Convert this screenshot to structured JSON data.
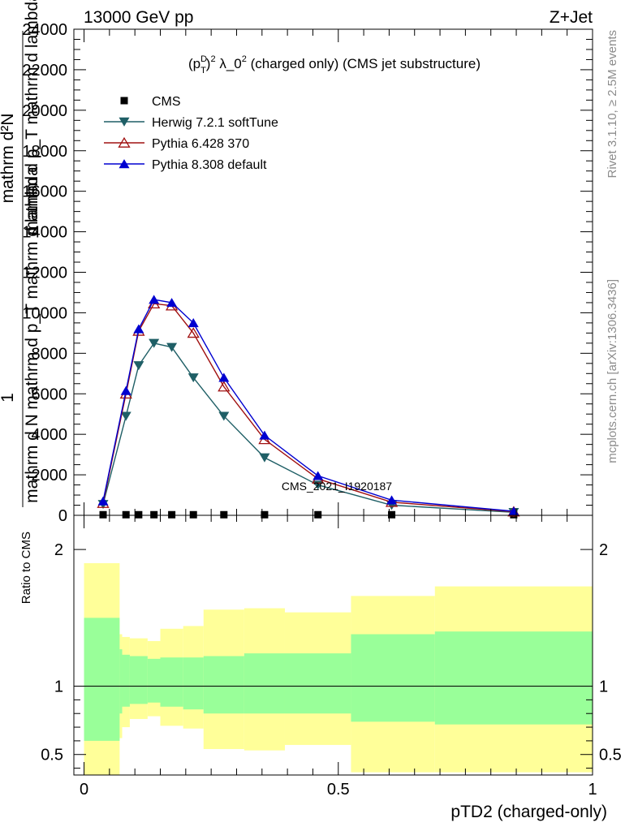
{
  "header": {
    "energy": "13000 GeV pp",
    "process": "Z+Jet"
  },
  "side_labels": {
    "rivet": "Rivet 3.1.10, ≥ 2.5M events",
    "mcplots": "mcplots.cern.ch [arXiv:1306.3436]"
  },
  "watermark": "CMS_2021_I1920187",
  "chart_data": [
    {
      "type": "line",
      "title": "(p_T^D)^2 λ_0^2 (charged only) (CMS jet substructure)",
      "title_parts": {
        "p": "(p",
        "sub": "T",
        "sup": "D",
        "close": ")",
        "sq": "2",
        "lam": " λ_0",
        "sq2": "2",
        "rest": " (charged only) (CMS jet substructure)"
      },
      "ylabel_lines": [
        "1",
        "mathrm d N",
        "mathrm d p_T mathrm d lambda",
        "mathrm d²N",
        "mathrm d p_T mathrm d lambda"
      ],
      "ylim": [
        0,
        24000
      ],
      "xlim": [
        -0.02,
        1.0
      ],
      "grid": false,
      "legend_position": "top-left",
      "ytick_labels": [
        "0",
        "2000",
        "4000",
        "6000",
        "8000",
        "10000",
        "12000",
        "14000",
        "16000",
        "18000",
        "20000",
        "22000",
        "24000"
      ],
      "series": [
        {
          "name": "CMS",
          "marker": "square",
          "color": "#000000",
          "x": [
            0.0375,
            0.0825,
            0.1075,
            0.1375,
            0.1725,
            0.215,
            0.275,
            0.355,
            0.46,
            0.605,
            0.845
          ],
          "y": [
            30,
            30,
            30,
            30,
            30,
            30,
            30,
            30,
            30,
            30,
            30
          ]
        },
        {
          "name": "Herwig 7.2.1 softTune",
          "marker": "triangle-down",
          "color": "#1f5f66",
          "x": [
            0.0375,
            0.0825,
            0.1075,
            0.1375,
            0.1725,
            0.215,
            0.275,
            0.355,
            0.46,
            0.605,
            0.845
          ],
          "y": [
            550,
            4900,
            7400,
            8500,
            8300,
            6800,
            4900,
            2850,
            1500,
            500,
            150
          ]
        },
        {
          "name": "Pythia 6.428 370",
          "marker": "triangle-up-open",
          "color": "#a01010",
          "x": [
            0.0375,
            0.0825,
            0.1075,
            0.1375,
            0.1725,
            0.215,
            0.275,
            0.355,
            0.46,
            0.605,
            0.845
          ],
          "y": [
            600,
            6000,
            9100,
            10450,
            10350,
            9000,
            6350,
            3750,
            1800,
            650,
            180
          ]
        },
        {
          "name": "Pythia 8.308 default",
          "marker": "triangle-up",
          "color": "#0000d0",
          "x": [
            0.0375,
            0.0825,
            0.1075,
            0.1375,
            0.1725,
            0.215,
            0.275,
            0.355,
            0.46,
            0.605,
            0.845
          ],
          "y": [
            700,
            6150,
            9200,
            10650,
            10500,
            9500,
            6800,
            3950,
            1950,
            750,
            200
          ]
        }
      ]
    },
    {
      "type": "area",
      "ylabel": "Ratio to CMS",
      "xlabel": "pTD2 (charged-only)",
      "xlim": [
        -0.02,
        1.0
      ],
      "ylim": [
        0.35,
        2.25
      ],
      "reference_line": 1,
      "xtick_labels": [
        "0",
        "0.5",
        "1"
      ],
      "ytick_labels": [
        "0.5",
        "1",
        "2"
      ],
      "colors": {
        "inner_band": "#99ff99",
        "outer_band": "#ffff99"
      },
      "bin_edges": [
        0.0,
        0.07,
        0.075,
        0.09,
        0.125,
        0.15,
        0.195,
        0.235,
        0.315,
        0.395,
        0.525,
        0.69,
        1.0
      ],
      "inner_band": {
        "lo": [
          0.6,
          0.8,
          0.85,
          0.87,
          0.88,
          0.85,
          0.83,
          0.8,
          0.8,
          0.8,
          0.74,
          0.72
        ],
        "hi": [
          1.5,
          1.27,
          1.23,
          1.22,
          1.2,
          1.21,
          1.21,
          1.22,
          1.24,
          1.24,
          1.38,
          1.4
        ]
      },
      "outer_band": {
        "lo": [
          0.35,
          0.62,
          0.7,
          0.76,
          0.78,
          0.71,
          0.69,
          0.54,
          0.53,
          0.57,
          0.37,
          0.37
        ],
        "hi": [
          1.9,
          1.38,
          1.36,
          1.35,
          1.33,
          1.42,
          1.44,
          1.56,
          1.57,
          1.54,
          1.66,
          1.73
        ]
      }
    }
  ]
}
